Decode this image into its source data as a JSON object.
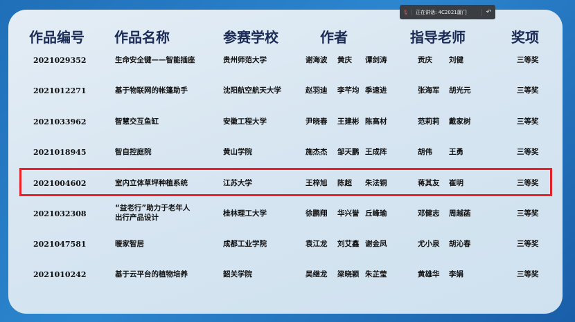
{
  "meeting_bar": {
    "speaking_text": "正在讲话: 4C2021厦门",
    "mic_icon": "microphone-icon",
    "back_icon": "reply-icon"
  },
  "headers": [
    "作品编号",
    "作品名称",
    "参赛学校",
    "作者",
    "指导老师",
    "奖项"
  ],
  "rows": [
    {
      "id": "2021029352",
      "title": "生命安全键——智能插座",
      "school": "贵州师范大学",
      "authors": [
        "谢海波",
        "黄庆",
        "谭剑涛"
      ],
      "advisors": [
        "贡庆",
        "刘健"
      ],
      "award": "三等奖"
    },
    {
      "id": "2021012271",
      "title": "基于物联网的帐篷助手",
      "school": "沈阳航空航天大学",
      "authors": [
        "赵羽迪",
        "李芊均",
        "季速进"
      ],
      "advisors": [
        "张海军",
        "胡光元"
      ],
      "award": "三等奖"
    },
    {
      "id": "2021033962",
      "title": "智慧交互鱼缸",
      "school": "安徽工程大学",
      "authors": [
        "尹晓春",
        "王建彬",
        "陈高材"
      ],
      "advisors": [
        "范莉莉",
        "戴家树"
      ],
      "award": "三等奖"
    },
    {
      "id": "2021018945",
      "title": "智自控庭院",
      "school": "黄山学院",
      "authors": [
        "施杰杰",
        "邹天鹏",
        "王成阵"
      ],
      "advisors": [
        "胡伟",
        "王勇"
      ],
      "award": "三等奖"
    },
    {
      "id": "2021004602",
      "title": "室内立体草坪种植系统",
      "school": "江苏大学",
      "authors": [
        "王梓旭",
        "陈超",
        "朱法铜"
      ],
      "advisors": [
        "蒋其友",
        "崔明"
      ],
      "award": "三等奖"
    },
    {
      "id": "2021032308",
      "title": "“益老行”助力于老年人",
      "title2": "出行产品设计",
      "school": "桂林理工大学",
      "authors": [
        "徐鹏翔",
        "华兴誉",
        "丘峰瑜"
      ],
      "advisors": [
        "邓健志",
        "周越菡"
      ],
      "award": "三等奖"
    },
    {
      "id": "2021047581",
      "title": "暖家智居",
      "school": "成都工业学院",
      "authors": [
        "袁江龙",
        "刘艾鑫",
        "谢金凤"
      ],
      "advisors": [
        "尤小泉",
        "胡沁春"
      ],
      "award": "三等奖"
    },
    {
      "id": "2021010242",
      "title": "基于云平台的植物培养",
      "school": "韶关学院",
      "authors": [
        "吴继龙",
        "梁晓颖",
        "朱芷莹"
      ],
      "advisors": [
        "黄雄华",
        "李娟"
      ],
      "award": "三等奖"
    }
  ],
  "highlight_color": "#e8202a"
}
